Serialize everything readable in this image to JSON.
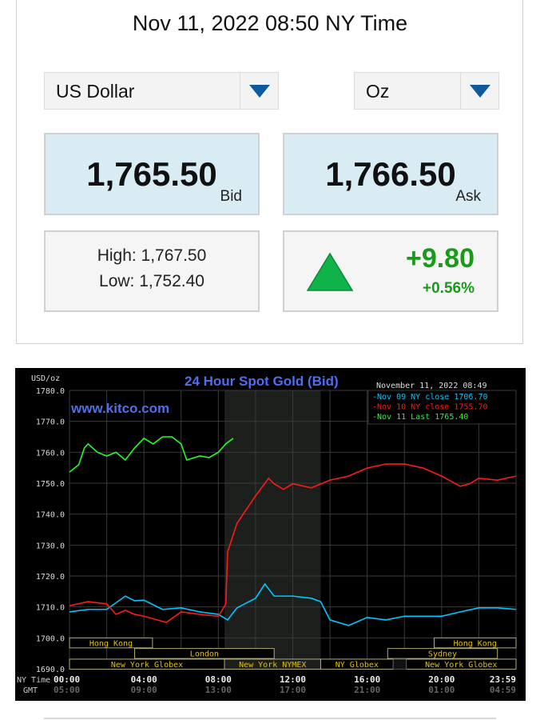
{
  "header": {
    "title": "Nov 11, 2022 08:50 NY Time"
  },
  "selectors": {
    "currency": "US Dollar",
    "unit": "Oz"
  },
  "quote": {
    "bid": "1,765.50",
    "bid_label": "Bid",
    "ask": "1,766.50",
    "ask_label": "Ask",
    "high": "High: 1,767.50",
    "low": "Low: 1,752.40",
    "change": "+9.80",
    "change_pct": "+0.56%",
    "direction": "up-arrow-icon",
    "up_color": "#1a9a1a"
  },
  "chart_data": {
    "type": "line",
    "title": "24 Hour Spot Gold (Bid)",
    "ylabel": "USD/oz",
    "watermark": "www.kitco.com",
    "timestamp": "November 11, 2022 08:49",
    "ylim": [
      1690,
      1780
    ],
    "yticks": [
      "1780.0",
      "1770.0",
      "1760.0",
      "1750.0",
      "1740.0",
      "1730.0",
      "1720.0",
      "1710.0",
      "1700.0",
      "1690.0"
    ],
    "x_row_labels": {
      "ny": "NY Time",
      "gmt": "GMT"
    },
    "xticks_ny": [
      "00:00",
      "04:00",
      "08:00",
      "12:00",
      "16:00",
      "20:00",
      "23:59"
    ],
    "xticks_gmt": [
      "05:00",
      "09:00",
      "13:00",
      "17:00",
      "21:00",
      "01:00",
      "04:59"
    ],
    "x_unit": "hours NY time",
    "xlim": [
      0,
      24
    ],
    "grid": true,
    "legend_placement": "top-right",
    "highlight_hours": [
      8.33,
      13.5
    ],
    "series": [
      {
        "name": "Nov 09 NY close 1706.70",
        "color": "#00c8ff",
        "x": [
          0,
          1,
          2,
          3,
          3.5,
          4,
          5,
          6,
          7,
          8,
          8.5,
          9,
          10,
          10.5,
          11,
          12,
          13,
          13.5,
          14,
          15,
          16,
          17,
          18,
          19,
          20,
          21,
          22,
          23,
          24
        ],
        "y": [
          1708.4,
          1709.2,
          1709.2,
          1713.5,
          1712,
          1712.2,
          1709.2,
          1709.7,
          1708.4,
          1707.6,
          1705.8,
          1709.7,
          1712.8,
          1717.4,
          1713.5,
          1713.5,
          1712.8,
          1711.7,
          1705.8,
          1704,
          1706.6,
          1705.8,
          1707,
          1707,
          1707,
          1708.4,
          1709.7,
          1709.7,
          1709.2
        ]
      },
      {
        "name": "Nov 10 NY close 1755.70",
        "color": "#ff1a1a",
        "x": [
          0,
          1,
          2,
          2.5,
          3,
          3.5,
          4,
          5.2,
          6,
          7,
          8,
          8.4,
          8.5,
          9,
          10,
          10.7,
          11,
          11.5,
          12,
          13,
          14,
          15,
          16,
          17,
          18,
          19,
          20,
          21,
          21.5,
          22,
          23,
          24
        ],
        "y": [
          1710.4,
          1711.7,
          1711,
          1707.6,
          1708.9,
          1707.6,
          1707,
          1705,
          1708.4,
          1707.6,
          1707,
          1710.9,
          1727.8,
          1737,
          1745.9,
          1751.6,
          1749.8,
          1748,
          1749.8,
          1748.5,
          1751,
          1752.3,
          1754.9,
          1756.2,
          1756.2,
          1754.9,
          1752.3,
          1749,
          1749.8,
          1751.6,
          1751,
          1752.3
        ]
      },
      {
        "name": "Nov 11 Last 1765.40",
        "color": "#22ff22",
        "x": [
          0,
          0.5,
          0.8,
          1,
          1.5,
          2,
          2.5,
          3,
          3.5,
          4,
          4.5,
          5,
          5.5,
          6,
          6.3,
          7,
          7.5,
          8,
          8.4,
          8.8
        ],
        "y": [
          1753.6,
          1756,
          1761.4,
          1762.7,
          1760,
          1758.8,
          1760,
          1757.5,
          1761.4,
          1764.5,
          1762.7,
          1765,
          1765,
          1762.7,
          1757.5,
          1758.8,
          1758.3,
          1760,
          1762.7,
          1764.5
        ]
      }
    ],
    "sessions": [
      {
        "label": "Hong Kong",
        "row": 0,
        "start": 0,
        "end": 4.46
      },
      {
        "label": "Hong Kong",
        "row": 0,
        "start": 19.6,
        "end": 24
      },
      {
        "label": "London",
        "row": 1,
        "start": 3.5,
        "end": 11
      },
      {
        "label": "Sydney",
        "row": 1,
        "start": 17.1,
        "end": 23
      },
      {
        "label": "New York Globex",
        "row": 2,
        "start": 0,
        "end": 8.33
      },
      {
        "label": "New York NYMEX",
        "row": 2,
        "start": 8.33,
        "end": 13.5
      },
      {
        "label": "NY Globex",
        "row": 2,
        "start": 13.5,
        "end": 17.4
      },
      {
        "label": "New York Globex",
        "row": 2,
        "start": 18.1,
        "end": 24
      }
    ]
  }
}
